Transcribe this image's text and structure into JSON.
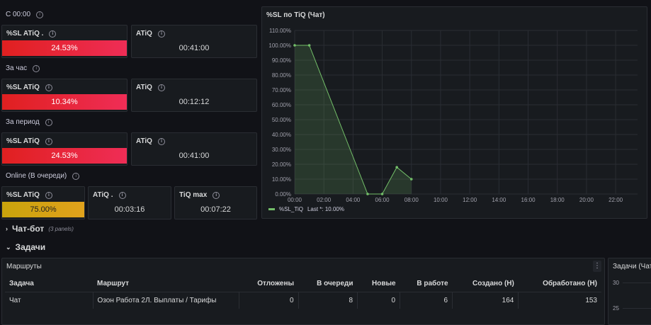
{
  "sections": {
    "since_midnight": "С 00:00",
    "per_hour": "За час",
    "per_period": "За период",
    "online": "Online (В очереди)"
  },
  "stats": {
    "row1": {
      "sl_title": "%SL ATiQ .",
      "sl_value": "24.53%",
      "atiq_title": "ATiQ",
      "atiq_value": "00:41:00"
    },
    "row2": {
      "sl_title": "%SL ATiQ",
      "sl_value": "10.34%",
      "atiq_title": "ATiQ",
      "atiq_value": "00:12:12"
    },
    "row3": {
      "sl_title": "%SL ATiQ",
      "sl_value": "24.53%",
      "atiq_title": "ATiQ",
      "atiq_value": "00:41:00"
    },
    "row4": {
      "sl_title": "%SL ATiQ",
      "sl_value": "75.00%",
      "atiq_title": "ATiQ .",
      "atiq_value": "00:03:16",
      "max_title": "TiQ max",
      "max_value": "00:07:22"
    }
  },
  "colors": {
    "red_start": "#e02020",
    "red_end": "#ef2d56",
    "amber": "#e0a21c",
    "series": "#73bf69"
  },
  "chart_panel": {
    "title": "%SL по TiQ (Чат)",
    "legend_label": "%SL_TiQ",
    "legend_last": "Last *: 10.00%"
  },
  "chart_data": {
    "type": "area",
    "title": "%SL по TiQ (Чат)",
    "x_ticks": [
      "00:00",
      "02:00",
      "04:00",
      "06:00",
      "08:00",
      "10:00",
      "12:00",
      "14:00",
      "16:00",
      "18:00",
      "20:00",
      "22:00"
    ],
    "y_ticks": [
      "0.00%",
      "10.00%",
      "20.00%",
      "30.00%",
      "40.00%",
      "50.00%",
      "60.00%",
      "70.00%",
      "80.00%",
      "90.00%",
      "100.00%",
      "110.00%"
    ],
    "ylim": [
      0,
      110
    ],
    "xlim": [
      "00:00",
      "23:30"
    ],
    "grid": true,
    "legend": "bottom-left",
    "series": [
      {
        "name": "%SL_TiQ",
        "x": [
          "00:00",
          "01:00",
          "05:00",
          "06:00",
          "07:00",
          "08:00"
        ],
        "y": [
          100,
          100,
          0,
          0,
          18,
          10
        ]
      }
    ]
  },
  "collapsed_row": {
    "title": "Чат-бот",
    "note": "(3 panels)"
  },
  "expanded_row": {
    "title": "Задачи"
  },
  "routes_panel": {
    "title": "Маршруты",
    "columns": [
      "Задача",
      "Маршрут",
      "Отложены",
      "В очереди",
      "Новые",
      "В работе",
      "Создано (Н)",
      "Обработано (Н)"
    ],
    "rows": [
      [
        "Чат",
        "Озон Работа 2Л. Выплаты / Тарифы",
        "0",
        "8",
        "0",
        "6",
        "164",
        "153"
      ]
    ]
  },
  "tasks_panel": {
    "title": "Задачи (Чат",
    "y_ticks": [
      "30",
      "25"
    ]
  },
  "icons": {
    "info": "info-icon",
    "menu": "menu-icon",
    "chevron_right": "chevron-right-icon",
    "chevron_down": "chevron-down-icon"
  }
}
